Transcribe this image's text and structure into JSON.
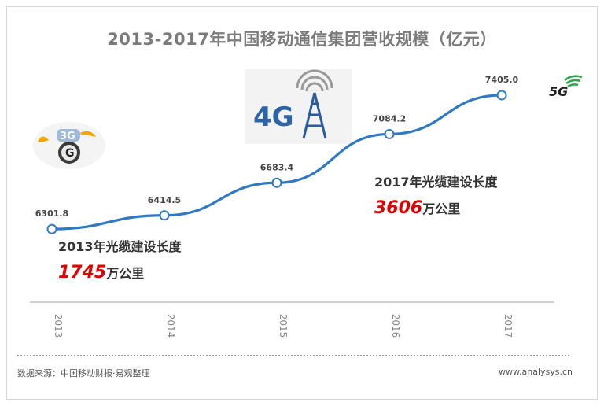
{
  "chart_data": {
    "type": "line",
    "title": "2013-2017年中国移动通信集团营收规模（亿元）",
    "categories": [
      "2013",
      "2014",
      "2015",
      "2016",
      "2017"
    ],
    "values": [
      6301.8,
      6414.5,
      6683.4,
      7084.2,
      7405.0
    ],
    "value_labels": [
      "6301.8",
      "6414.5",
      "6683.4",
      "7084.2",
      "7405.0"
    ],
    "ylim": [
      5700,
      7800
    ],
    "grid": false,
    "legend": "none",
    "colors": {
      "line": "#2f78c4",
      "point_fill": "#ffffff",
      "label": "#444444",
      "axis": "#bfbfbf"
    },
    "annotations": [
      {
        "title": "2013年光缆建设长度",
        "value": "1745",
        "unit": "万公里"
      },
      {
        "title": "2017年光缆建设长度",
        "value": "3606",
        "unit": "万公里"
      }
    ]
  },
  "logos": {
    "left": {
      "icon": "3g-logo-icon",
      "text": "3G"
    },
    "center": {
      "icon": "4g-tower-icon",
      "text": "4G"
    },
    "right": {
      "icon": "5g-logo-icon",
      "text": "5G"
    }
  },
  "footer": {
    "source": "数据来源：中国移动财报·易观整理",
    "site": "www.analysys.cn"
  }
}
